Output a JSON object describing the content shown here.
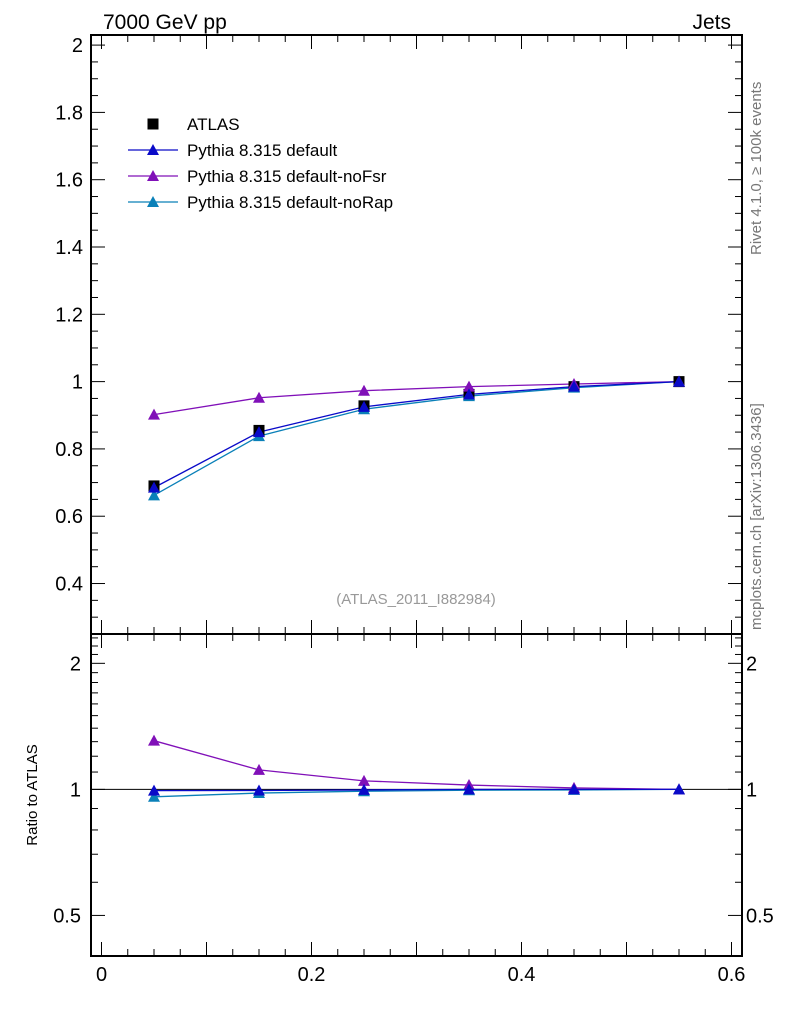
{
  "header": {
    "energy_label": "7000 GeV pp",
    "category_label": "Jets"
  },
  "side_labels": {
    "rivet": "Rivet 4.1.0, ≥ 100k events",
    "mcplots": "mcplots.cern.ch [arXiv:1306.3436]"
  },
  "watermark": "(ATLAS_2011_I882984)",
  "colors": {
    "atlas": "#000000",
    "default": "#0a0ac8",
    "noFsr": "#8010b8",
    "noRap": "#0a80b8"
  },
  "chart_data": [
    {
      "type": "line",
      "panel": "main",
      "xlim": [
        -0.01,
        0.61
      ],
      "ylim": [
        0.25,
        2.03
      ],
      "yticks": [
        0.4,
        0.6,
        0.8,
        1.0,
        1.2,
        1.4,
        1.6,
        1.8,
        2.0
      ],
      "ytick_labels": [
        "0.4",
        "0.6",
        "0.8",
        "1",
        "1.2",
        "1.4",
        "1.6",
        "1.8",
        "2"
      ],
      "x": [
        0.05,
        0.15,
        0.25,
        0.35,
        0.45,
        0.55
      ],
      "series": [
        {
          "name": "ATLAS",
          "marker": "square",
          "values": [
            0.69,
            0.855,
            0.928,
            0.962,
            0.985,
            1.0
          ]
        },
        {
          "name": "Pythia 8.315 default",
          "marker": "triangle",
          "values": [
            0.685,
            0.85,
            0.925,
            0.962,
            0.985,
            1.0
          ]
        },
        {
          "name": "Pythia 8.315 default-noFsr",
          "marker": "triangle",
          "values": [
            0.902,
            0.952,
            0.973,
            0.985,
            0.993,
            1.0
          ]
        },
        {
          "name": "Pythia 8.315 default-noRap",
          "marker": "triangle",
          "values": [
            0.662,
            0.838,
            0.918,
            0.957,
            0.982,
            1.0
          ]
        }
      ],
      "legend": [
        "ATLAS",
        "Pythia 8.315 default",
        "Pythia 8.315 default-noFsr",
        "Pythia 8.315 default-noRap"
      ],
      "legend_position": "top-left"
    },
    {
      "type": "line",
      "panel": "ratio",
      "ylabel": "Ratio to ATLAS",
      "yscale": "log",
      "ylim": [
        0.4,
        2.35
      ],
      "yticks": [
        0.5,
        1,
        2
      ],
      "ytick_labels": [
        "0.5",
        "1",
        "2"
      ],
      "xticks": [
        0,
        0.2,
        0.4,
        0.6
      ],
      "xtick_labels": [
        "0",
        "0.2",
        "0.4",
        "0.6"
      ],
      "x": [
        0.05,
        0.15,
        0.25,
        0.35,
        0.45,
        0.55
      ],
      "series": [
        {
          "name": "Pythia 8.315 default",
          "values": [
            0.993,
            0.994,
            0.997,
            1.0,
            1.0,
            1.0
          ]
        },
        {
          "name": "Pythia 8.315 default-noFsr",
          "values": [
            1.307,
            1.113,
            1.048,
            1.024,
            1.008,
            1.0
          ]
        },
        {
          "name": "Pythia 8.315 default-noRap",
          "values": [
            0.96,
            0.98,
            0.99,
            0.995,
            0.997,
            1.0
          ]
        }
      ]
    }
  ]
}
